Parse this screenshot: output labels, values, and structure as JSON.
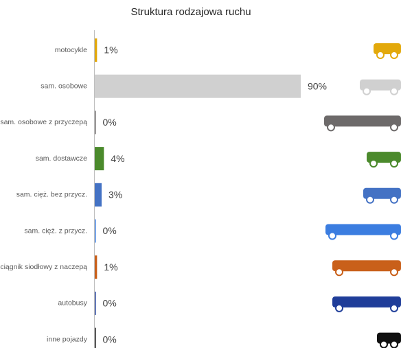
{
  "chart_data": {
    "type": "hbar",
    "title": "Struktura rodzajowa ruchu",
    "categories": [
      "motocykle",
      "sam. osobowe",
      "sam. osobowe z przyczepą",
      "sam. dostawcze",
      "sam. cięż. bez przycz.",
      "sam. cięż. z przycz.",
      "ciągnik siodłowy z naczepą",
      "autobusy",
      "inne pojazdy"
    ],
    "values": [
      1,
      90,
      0,
      4,
      3,
      0,
      1,
      0,
      0
    ],
    "value_labels": [
      "1%",
      "90%",
      "0%",
      "4%",
      "3%",
      "0%",
      "1%",
      "0%",
      "0%"
    ],
    "colors": [
      "#e3a90b",
      "#d0d0d0",
      "#6d6a6a",
      "#4b8a2c",
      "#4472c4",
      "#3b7de0",
      "#c9601a",
      "#1f3d99",
      "#111111"
    ]
  }
}
